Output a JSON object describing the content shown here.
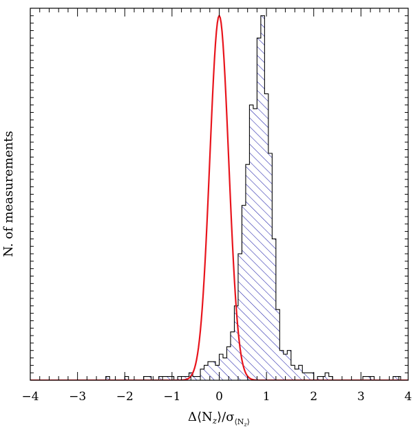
{
  "chart_data": {
    "type": "histogram",
    "title": "",
    "xlabel": "Δ⟨N",
    "xlabel_sub": "z",
    "xlabel_mid": "⟩/σ",
    "xlabel_sub2": "⟨N",
    "xlabel_sub2_sub": "z",
    "xlabel_sub2_end": "⟩",
    "ylabel": "N. of measurements",
    "xlim": [
      -4,
      4
    ],
    "ylim": [
      0,
      100
    ],
    "x_ticks": [
      -4,
      -3,
      -2,
      -1,
      0,
      1,
      2,
      3,
      4
    ],
    "x_tick_labels": [
      "−4",
      "−3",
      "−2",
      "−1",
      "0",
      "1",
      "2",
      "3",
      "4"
    ],
    "y_ticks_labeled": false,
    "grid": false,
    "legend": "none",
    "histogram": {
      "bin_width": 0.08,
      "bin_edges_start": -2.4,
      "counts": [
        1,
        0,
        0,
        0,
        0,
        1,
        0,
        0,
        0,
        0,
        1,
        1,
        0,
        0,
        1,
        1,
        1,
        1,
        0,
        1,
        1,
        1,
        2,
        1,
        1,
        3,
        4,
        5,
        5,
        4,
        7,
        6,
        9,
        13,
        20,
        34,
        47,
        58,
        74,
        73,
        92,
        98,
        77,
        61,
        38,
        19,
        8,
        7,
        8,
        4,
        3,
        4,
        2,
        2,
        2,
        0,
        1,
        1,
        2,
        1,
        0,
        0,
        0,
        0,
        0,
        0,
        0,
        0,
        1,
        1,
        1,
        0,
        0,
        0,
        0,
        0,
        1,
        1,
        0,
        0,
        0,
        0,
        0,
        0,
        0,
        0,
        0,
        0,
        0,
        0,
        0,
        0,
        0,
        0,
        1,
        1,
        0,
        0,
        0,
        0,
        1
      ],
      "edge_color": "#000000",
      "hatch_color": "#1c1ca8"
    },
    "fit_curve": {
      "type": "gaussian",
      "mu": 0.0,
      "sigma": 0.2,
      "amplitude": 98,
      "color": "#e8141c"
    }
  }
}
